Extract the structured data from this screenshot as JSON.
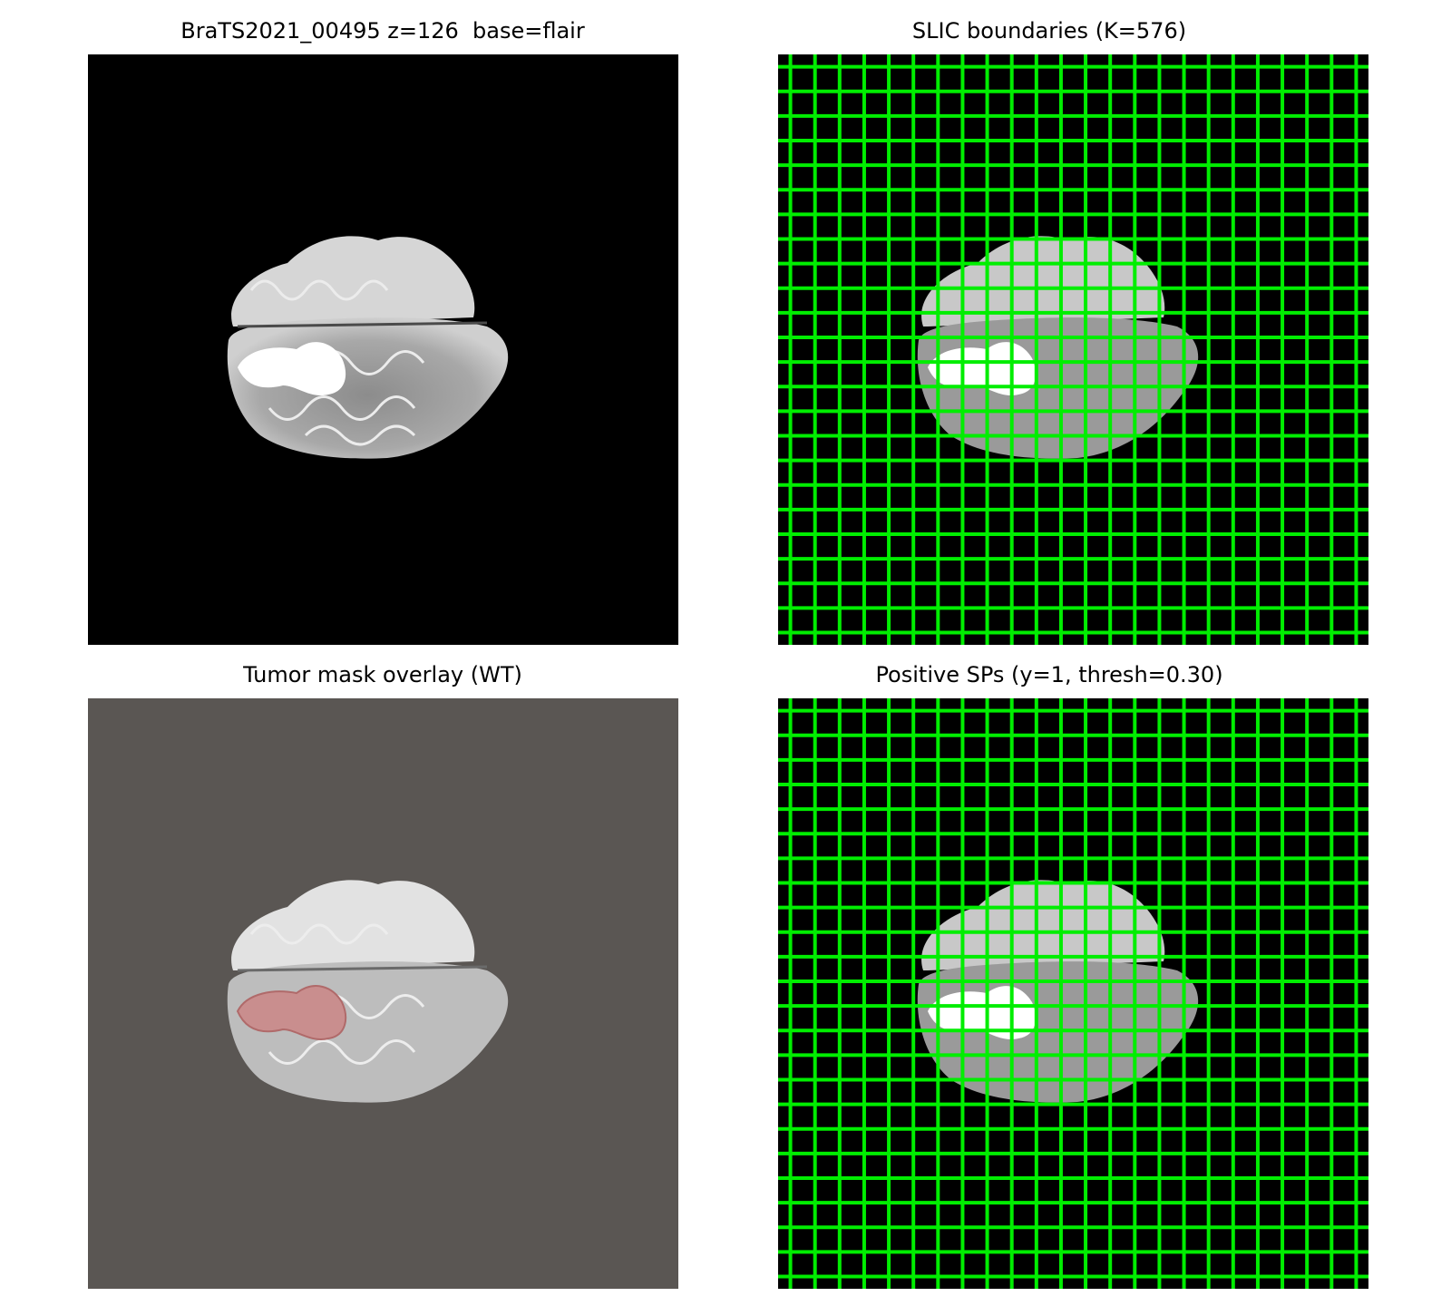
{
  "figure": {
    "panels": [
      {
        "title": "BraTS2021_00495 z=126  base=flair",
        "background": "#000000"
      },
      {
        "title": "SLIC boundaries (K=576)",
        "background": "#000000",
        "grid_color": "#00ee00",
        "grid_cells": 24
      },
      {
        "title": "Tumor mask overlay (WT)",
        "background": "#5a5653",
        "mask_color": "#c98e8e"
      },
      {
        "title": "Positive SPs (y=1, thresh=0.30)",
        "background": "#000000",
        "grid_color": "#00ee00",
        "grid_cells": 24
      }
    ]
  }
}
